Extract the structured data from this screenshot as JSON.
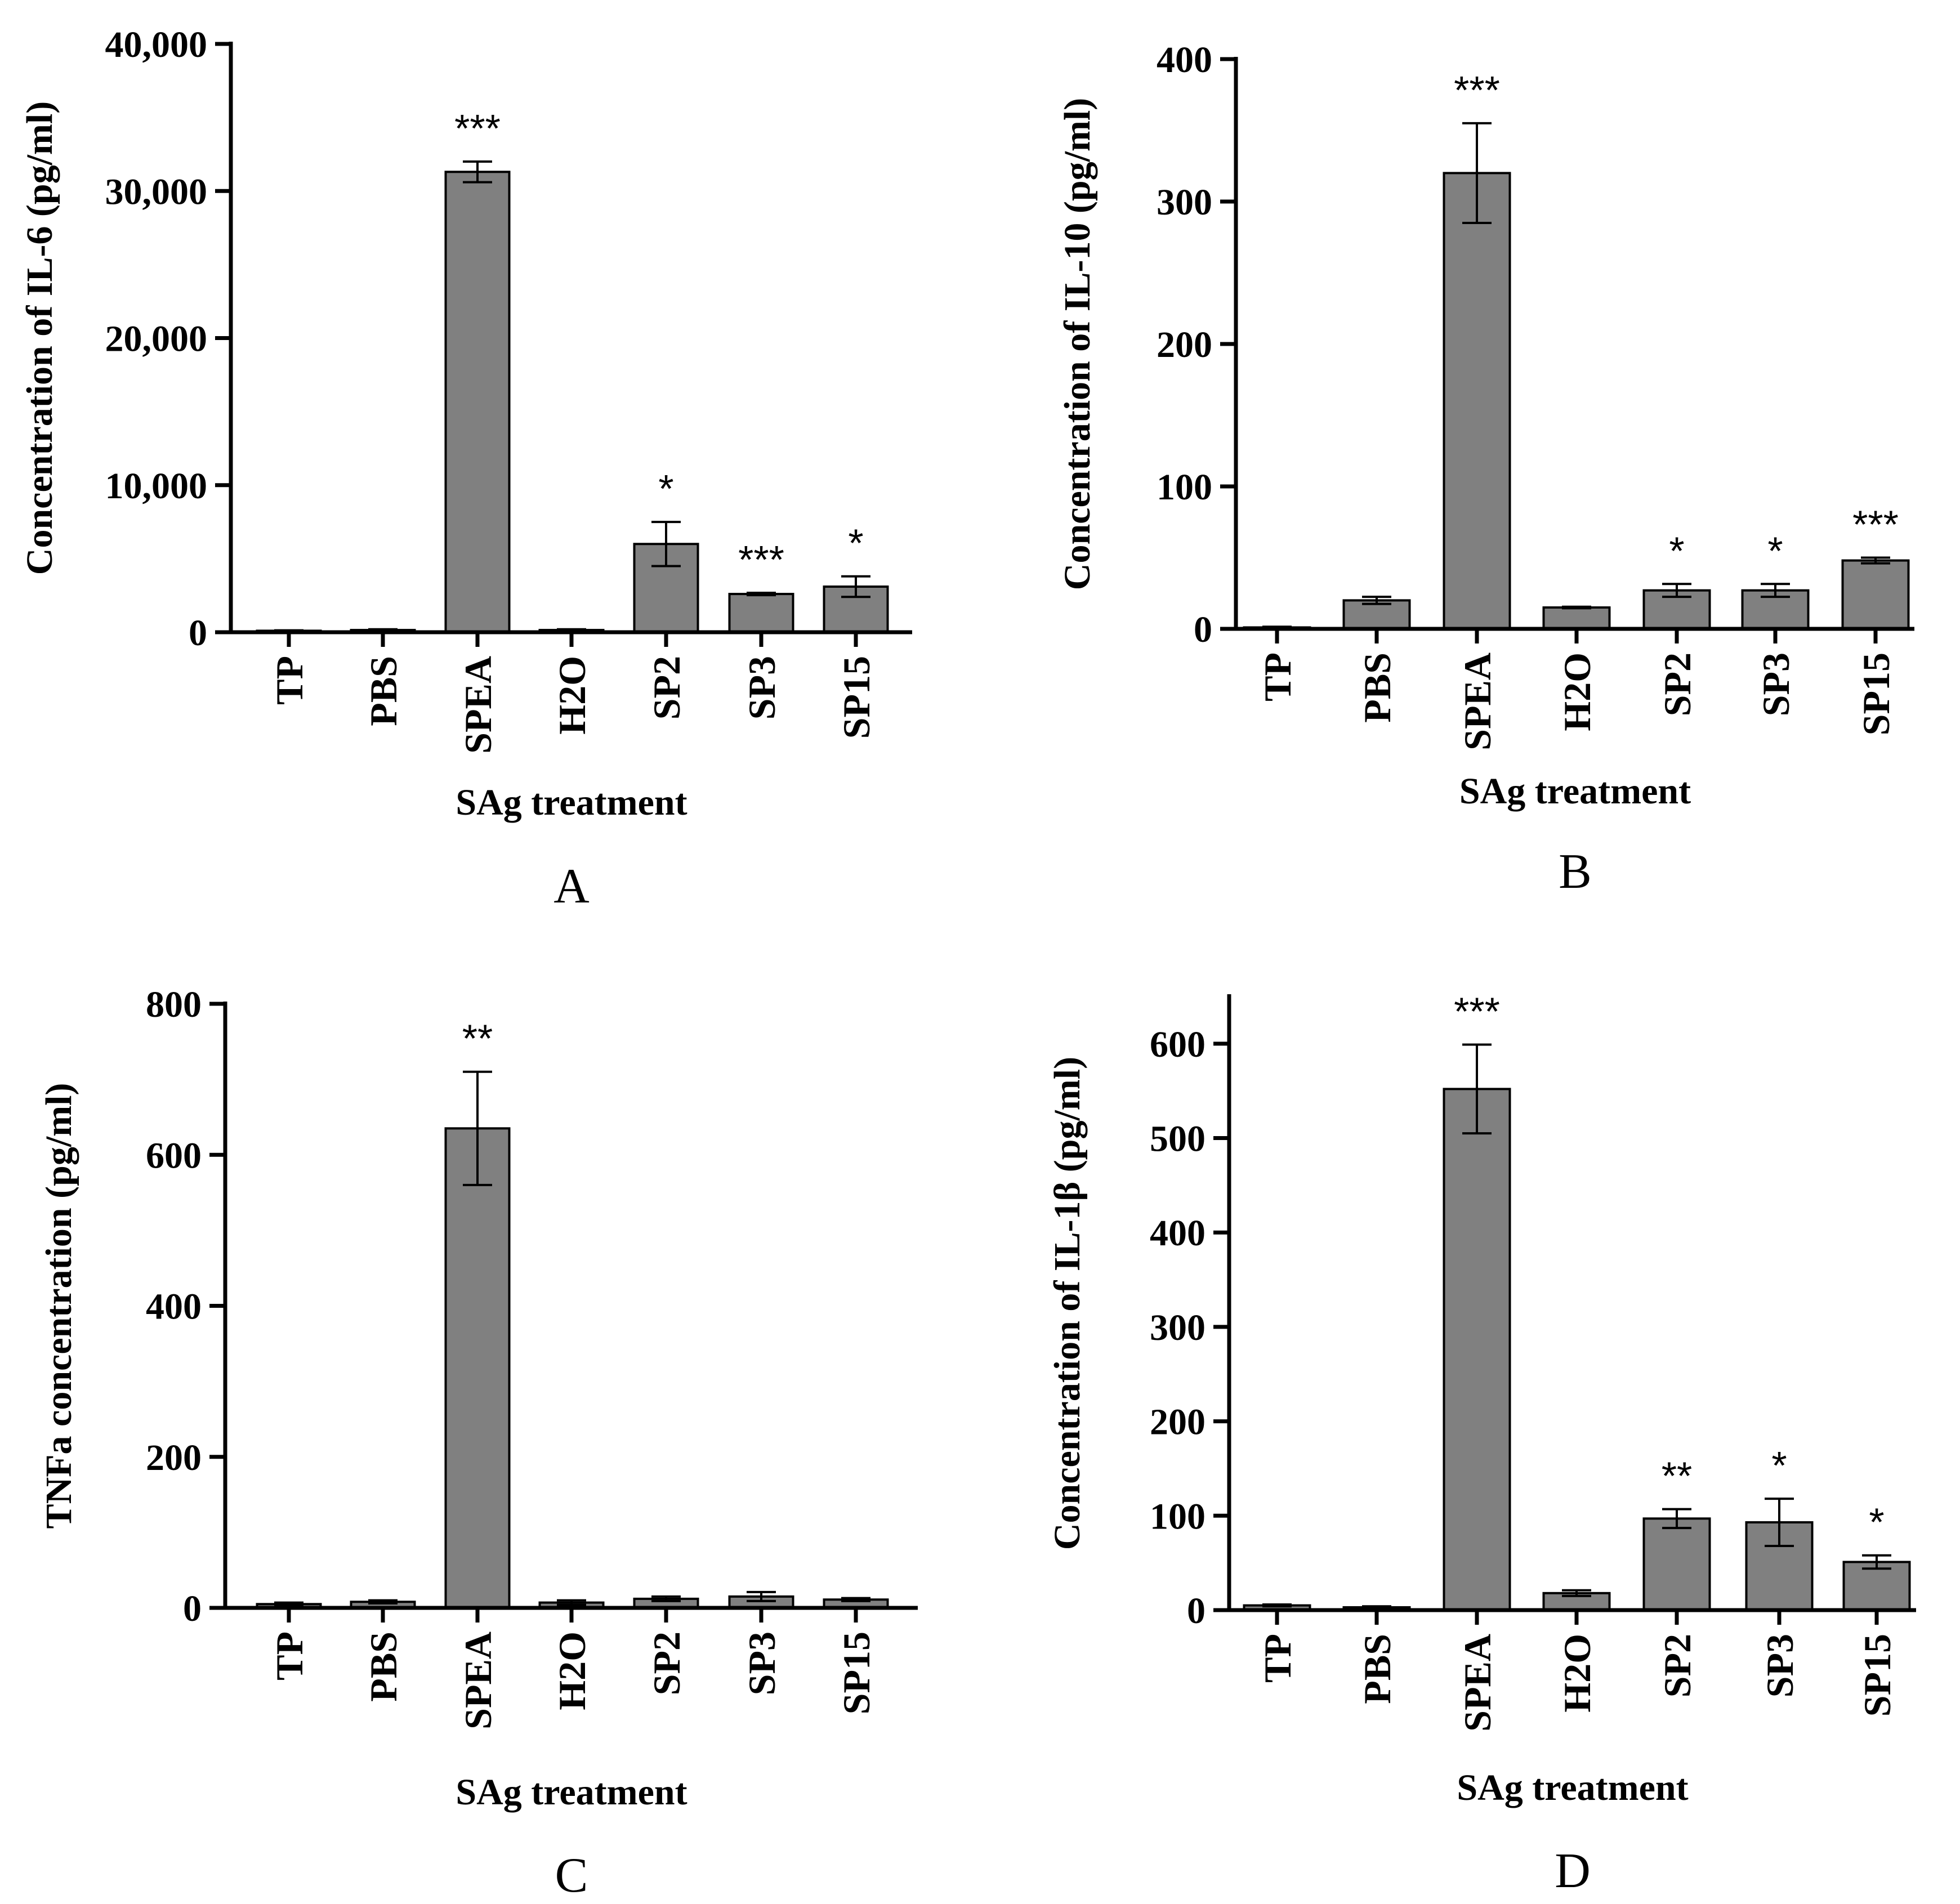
{
  "chart_data": [
    {
      "type": "bar",
      "panel": "A",
      "xlabel": "SAg treatment",
      "ylabel": "Concentration of IL-6 (pg/ml)",
      "ylim": [
        0,
        40000
      ],
      "yticks": [
        0,
        10000,
        20000,
        30000,
        40000
      ],
      "ytick_labels": [
        "0",
        "10,000",
        "20,000",
        "30,000",
        "40,000"
      ],
      "categories": [
        "TP",
        "PBS",
        "SPEA",
        "H2O",
        "SP2",
        "SP3",
        "SP15"
      ],
      "values": [
        100,
        150,
        31300,
        150,
        6000,
        2600,
        3100
      ],
      "errors": [
        30,
        50,
        700,
        50,
        1500,
        80,
        700
      ],
      "significance": [
        "",
        "",
        "***",
        "",
        "*",
        "***",
        "*"
      ]
    },
    {
      "type": "bar",
      "panel": "B",
      "xlabel": "SAg treatment",
      "ylabel": "Concentration of IL-10 (pg/ml)",
      "ylim": [
        0,
        400
      ],
      "yticks": [
        0,
        100,
        200,
        300,
        400
      ],
      "ytick_labels": [
        "0",
        "100",
        "200",
        "300",
        "400"
      ],
      "categories": [
        "TP",
        "PBS",
        "SPEA",
        "H2O",
        "SP2",
        "SP3",
        "SP15"
      ],
      "values": [
        1,
        20,
        320,
        15,
        27,
        27,
        48
      ],
      "errors": [
        0.5,
        2.5,
        35,
        0.5,
        4.5,
        4.5,
        2
      ],
      "significance": [
        "",
        "",
        "***",
        "",
        "*",
        "*",
        "***"
      ]
    },
    {
      "type": "bar",
      "panel": "C",
      "xlabel": "SAg treatment",
      "ylabel": "TNFa concentration (pg/ml)",
      "ylim": [
        0,
        800
      ],
      "yticks": [
        0,
        200,
        400,
        600,
        800
      ],
      "ytick_labels": [
        "0",
        "200",
        "400",
        "600",
        "800"
      ],
      "categories": [
        "TP",
        "PBS",
        "SPEA",
        "H2O",
        "SP2",
        "SP3",
        "SP15"
      ],
      "values": [
        5,
        8,
        635,
        7,
        12,
        15,
        11
      ],
      "errors": [
        2,
        2,
        75,
        3,
        3,
        6,
        2
      ],
      "significance": [
        "",
        "",
        "**",
        "",
        "",
        "",
        ""
      ]
    },
    {
      "type": "bar",
      "panel": "D",
      "xlabel": "SAg treatment",
      "ylabel": "Concentration of IL-1β (pg/ml)",
      "ylim": [
        0,
        650
      ],
      "yticks": [
        0,
        100,
        200,
        300,
        400,
        500,
        600
      ],
      "ytick_labels": [
        "0",
        "100",
        "200",
        "300",
        "400",
        "500",
        "600"
      ],
      "categories": [
        "TP",
        "PBS",
        "SPEA",
        "H2O",
        "SP2",
        "SP3",
        "SP15"
      ],
      "values": [
        5,
        3,
        552,
        18,
        97,
        93,
        51
      ],
      "errors": [
        1,
        1,
        47,
        3,
        10,
        25,
        7
      ],
      "significance": [
        "",
        "",
        "***",
        "",
        "**",
        "*",
        "*"
      ]
    }
  ]
}
